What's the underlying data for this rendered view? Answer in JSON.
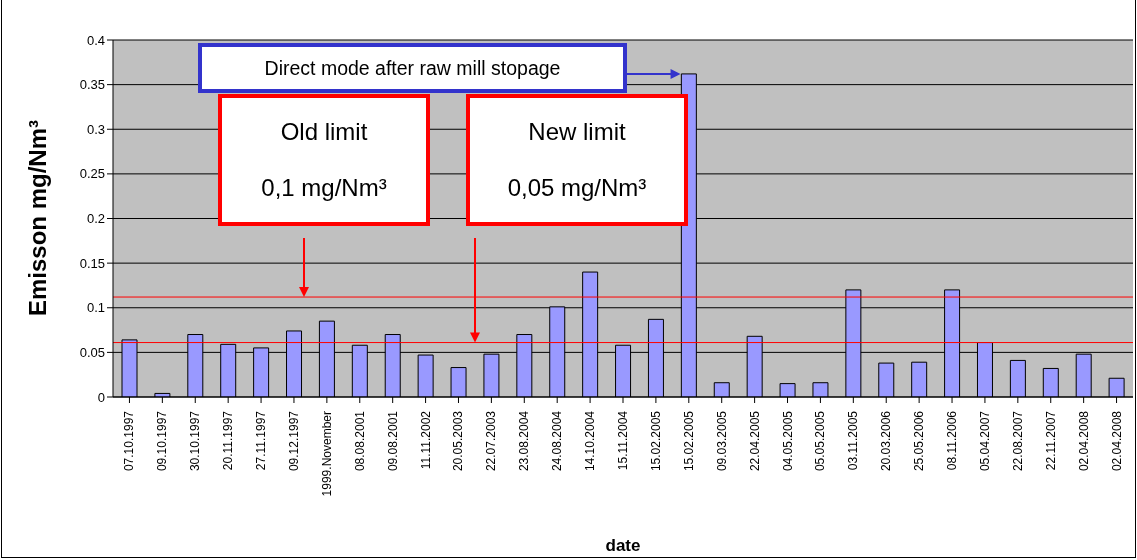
{
  "chart_data": {
    "type": "bar",
    "xlabel": "date",
    "ylabel": "Emisson mg/Nm³",
    "categories": [
      "07.10.1997",
      "09.10.1997",
      "30.10.1997",
      "20.11.1997",
      "27.11.1997",
      "09.12.1997",
      "1999.November",
      "08.08.2001",
      "09.08.2001",
      "11.11.2002",
      "20.05.2003",
      "22.07.2003",
      "23.08.2004",
      "24.08.2004",
      "14.10.2004",
      "15.11.2004",
      "15.02.2005",
      "15.02.2005",
      "09.03.2005",
      "22.04.2005",
      "04.05.2005",
      "05.05.2005",
      "03.11.2005",
      "20.03.2006",
      "25.05.2006",
      "08.11.2006",
      "05.04.2007",
      "22.08.2007",
      "22.11.2007",
      "02.04.2008",
      "02.04.2008"
    ],
    "values": [
      0.064,
      0.004,
      0.07,
      0.059,
      0.055,
      0.074,
      0.085,
      0.058,
      0.07,
      0.047,
      0.033,
      0.048,
      0.07,
      0.101,
      0.14,
      0.058,
      0.087,
      0.362,
      0.016,
      0.068,
      0.015,
      0.016,
      0.12,
      0.038,
      0.039,
      0.12,
      0.061,
      0.041,
      0.032,
      0.048,
      0.021
    ],
    "color": "#9999ff",
    "ylim": [
      0,
      0.4
    ],
    "yticks": [
      0,
      0.05,
      0.1,
      0.15,
      0.2,
      0.25,
      0.3,
      0.35,
      0.4
    ],
    "grid": "y",
    "ref_lines": [
      {
        "axis": "y",
        "value": 0.112,
        "label": "Old limit\n0,1 mg/Nm³",
        "color": "#ff0000"
      },
      {
        "axis": "y",
        "value": 0.061,
        "label": "New limit\n0,05 mg/Nm³",
        "color": "#ff0000"
      }
    ],
    "annotations": [
      "Direct mode after raw mill stopage"
    ]
  }
}
